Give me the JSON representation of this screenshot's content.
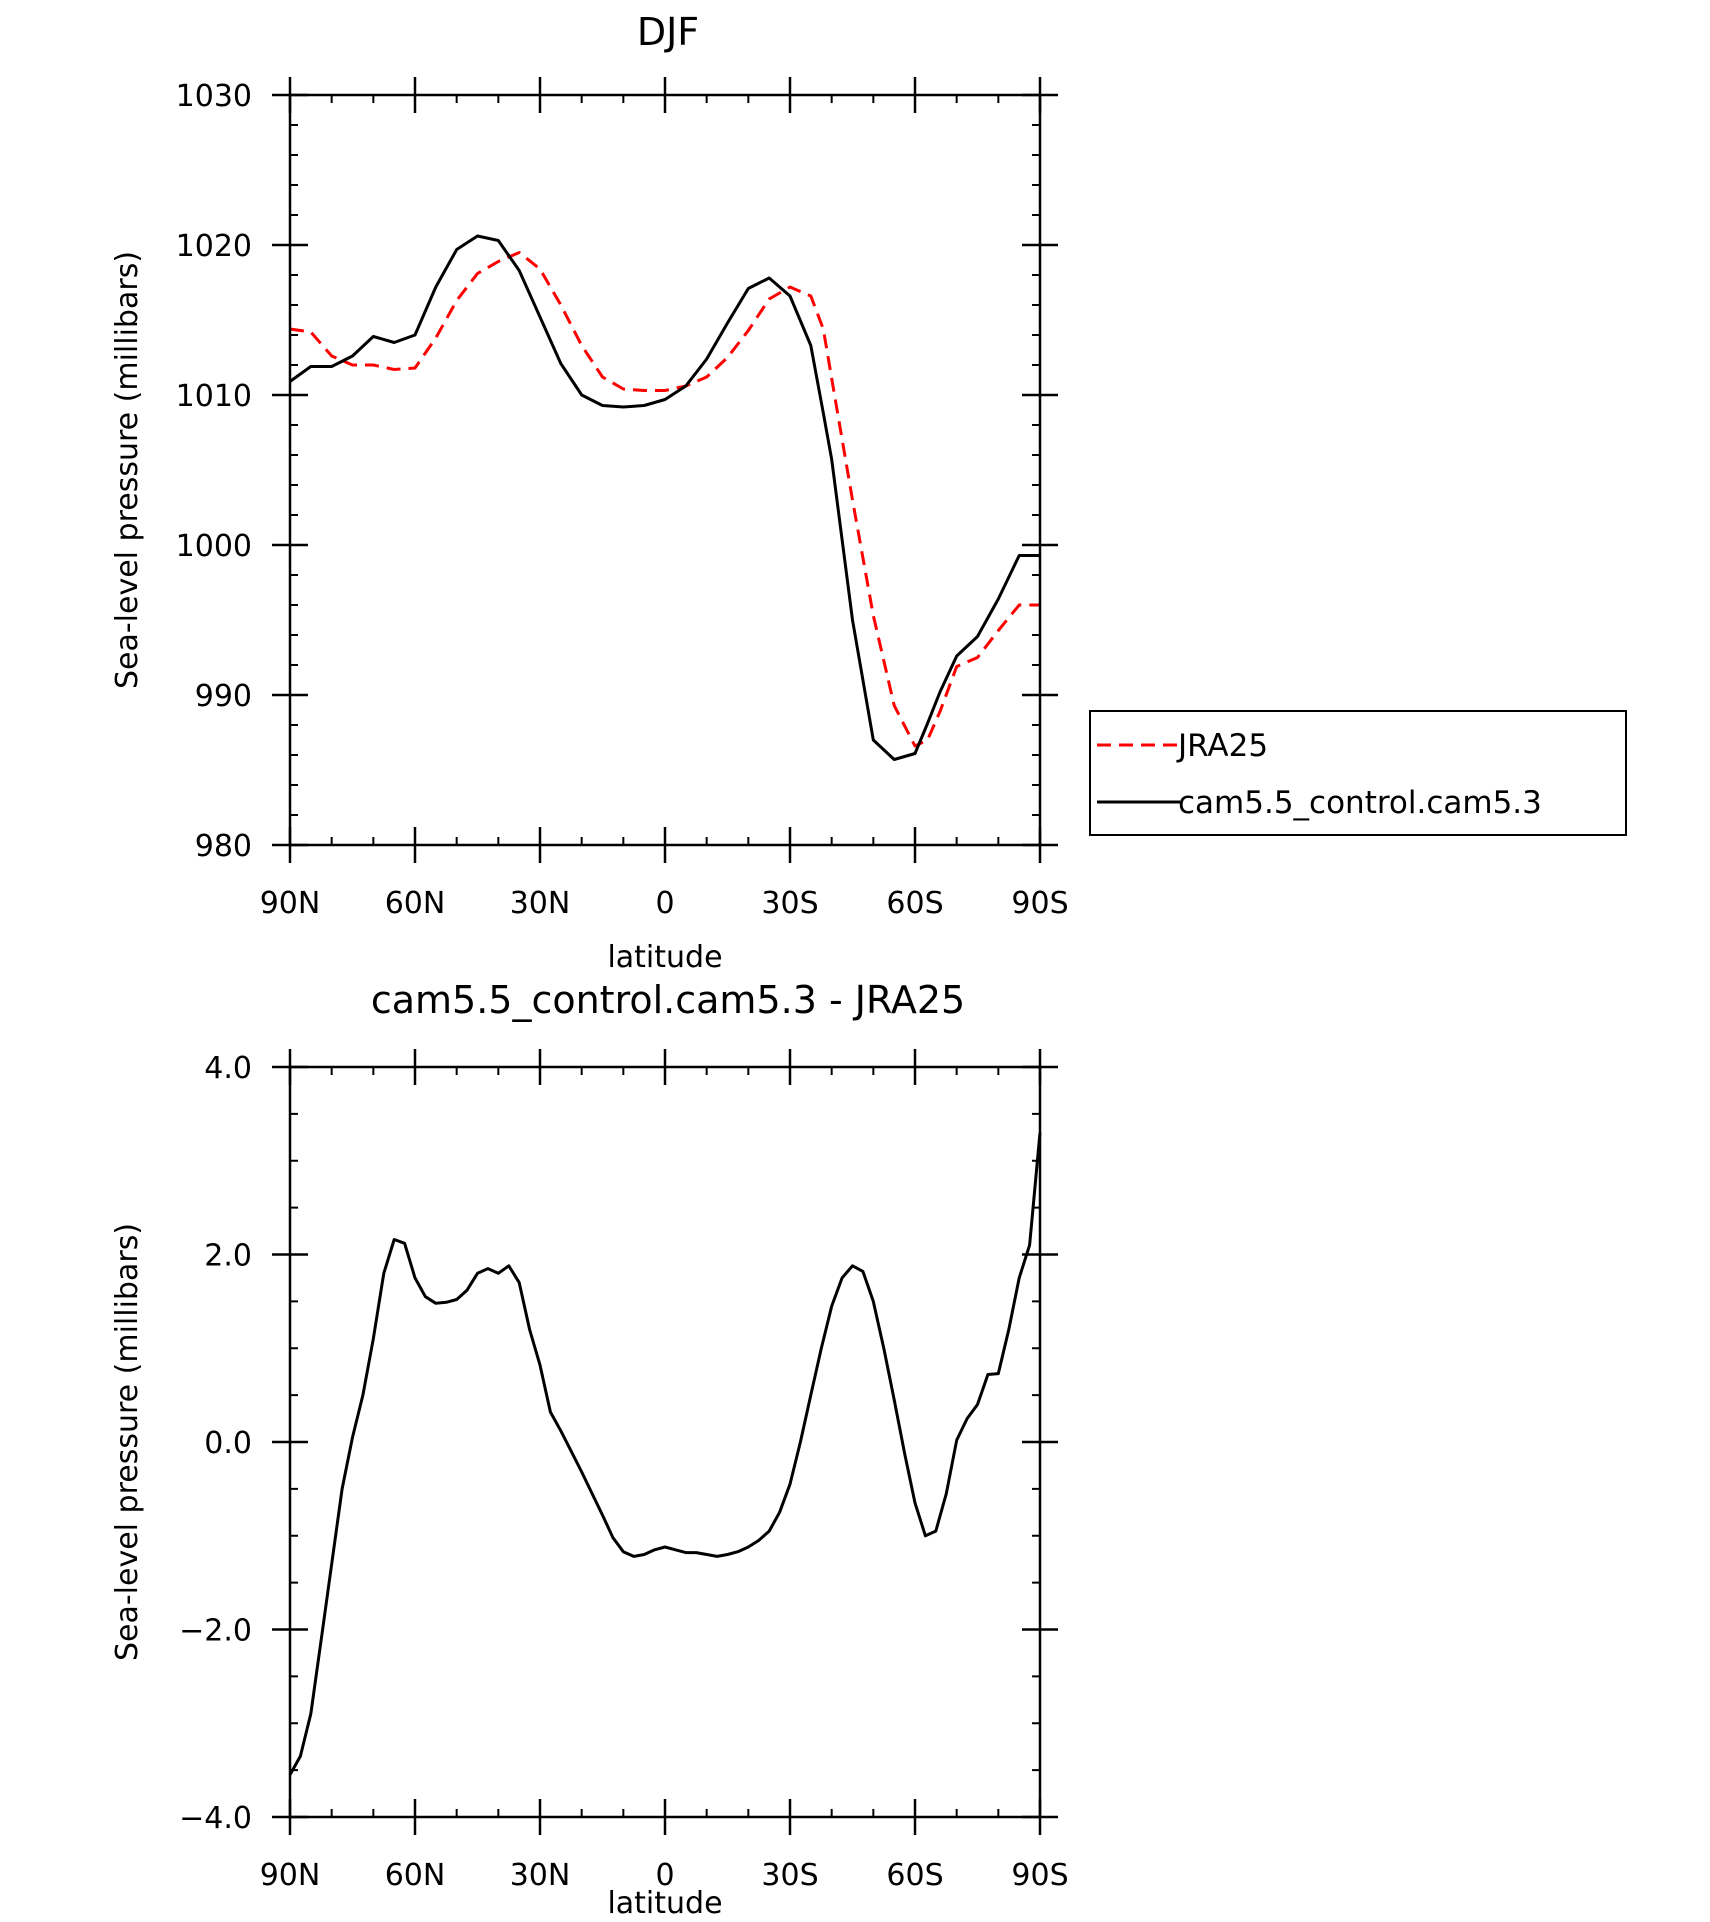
{
  "colors": {
    "jra25": "#ff0000",
    "model": "#000000",
    "axes": "#000000"
  },
  "chart_data": [
    {
      "type": "line",
      "title": "DJF",
      "xlabel": "latitude",
      "ylabel": "Sea-level pressure (millibars)",
      "xlim": [
        -90,
        90
      ],
      "ylim": [
        980,
        1030
      ],
      "x_ticks": [
        {
          "value": -90,
          "label": "90N"
        },
        {
          "value": -60,
          "label": "60N"
        },
        {
          "value": -30,
          "label": "30N"
        },
        {
          "value": 0,
          "label": "0"
        },
        {
          "value": 30,
          "label": "30S"
        },
        {
          "value": 60,
          "label": "60S"
        },
        {
          "value": 90,
          "label": "90S"
        }
      ],
      "y_ticks": [
        {
          "value": 980,
          "label": "980"
        },
        {
          "value": 990,
          "label": "990"
        },
        {
          "value": 1000,
          "label": "1000"
        },
        {
          "value": 1010,
          "label": "1010"
        },
        {
          "value": 1020,
          "label": "1020"
        },
        {
          "value": 1030,
          "label": "1030"
        }
      ],
      "legend_position": "right",
      "series": [
        {
          "name": "JRA25",
          "style": "dashed",
          "color": "#ff0000",
          "x": [
            -90,
            -85,
            -80,
            -75,
            -70,
            -65,
            -60,
            -55,
            -50,
            -45,
            -40,
            -35,
            -30,
            -25,
            -20,
            -15,
            -10,
            -5,
            0,
            5,
            10,
            15,
            20,
            25,
            30,
            35,
            38,
            40,
            45,
            50,
            55,
            60,
            63,
            66,
            70,
            75,
            80,
            85,
            90
          ],
          "y": [
            1014.4,
            1014.2,
            1012.6,
            1012.0,
            1012.0,
            1011.7,
            1011.8,
            1013.8,
            1016.3,
            1018.1,
            1018.9,
            1019.5,
            1018.4,
            1016.0,
            1013.3,
            1011.2,
            1010.4,
            1010.3,
            1010.3,
            1010.6,
            1011.2,
            1012.5,
            1014.3,
            1016.4,
            1017.2,
            1016.6,
            1014.4,
            1011.1,
            1003.0,
            995.3,
            989.3,
            986.6,
            987.0,
            988.9,
            991.9,
            992.5,
            994.3,
            996.0,
            996.0
          ]
        },
        {
          "name": "cam5.5_control.cam5.3",
          "style": "solid",
          "color": "#000000",
          "x": [
            -90,
            -85,
            -80,
            -75,
            -70,
            -65,
            -60,
            -55,
            -50,
            -45,
            -40,
            -35,
            -30,
            -25,
            -20,
            -15,
            -10,
            -5,
            0,
            5,
            10,
            15,
            20,
            25,
            30,
            35,
            38,
            40,
            45,
            50,
            55,
            60,
            63,
            66,
            70,
            75,
            80,
            85,
            90
          ],
          "y": [
            1010.9,
            1011.9,
            1011.9,
            1012.6,
            1013.9,
            1013.5,
            1014.0,
            1017.2,
            1019.7,
            1020.6,
            1020.3,
            1018.3,
            1015.2,
            1012.1,
            1010.0,
            1009.3,
            1009.2,
            1009.3,
            1009.7,
            1010.6,
            1012.4,
            1014.8,
            1017.1,
            1017.8,
            1016.6,
            1013.3,
            1008.8,
            1005.7,
            995.0,
            987.0,
            985.7,
            986.1,
            988.1,
            990.2,
            992.6,
            993.9,
            996.4,
            999.3,
            999.3
          ]
        }
      ]
    },
    {
      "type": "line",
      "title": "cam5.5_control.cam5.3 - JRA25",
      "xlabel": "latitude",
      "ylabel": "Sea-level pressure (millibars)",
      "xlim": [
        -90,
        90
      ],
      "ylim": [
        -4,
        4
      ],
      "x_ticks": [
        {
          "value": -90,
          "label": "90N"
        },
        {
          "value": -60,
          "label": "60N"
        },
        {
          "value": -30,
          "label": "30N"
        },
        {
          "value": 0,
          "label": "0"
        },
        {
          "value": 30,
          "label": "30S"
        },
        {
          "value": 60,
          "label": "60S"
        },
        {
          "value": 90,
          "label": "90S"
        }
      ],
      "y_ticks": [
        {
          "value": -4,
          "label": "−4.0"
        },
        {
          "value": -2,
          "label": "−2.0"
        },
        {
          "value": 0,
          "label": "0.0"
        },
        {
          "value": 2,
          "label": "2.0"
        },
        {
          "value": 4,
          "label": "4.0"
        }
      ],
      "series": [
        {
          "style": "solid",
          "color": "#000000",
          "x": [
            -90,
            -87.5,
            -85,
            -82.5,
            -80,
            -77.5,
            -75,
            -72.5,
            -70,
            -67.5,
            -65,
            -62.5,
            -60,
            -57.5,
            -55,
            -52.5,
            -50,
            -47.5,
            -45,
            -42.5,
            -40,
            -37.5,
            -35,
            -32.5,
            -30,
            -27.5,
            -25,
            -22.5,
            -20,
            -17.5,
            -15,
            -12.5,
            -10,
            -7.5,
            -5,
            -2.5,
            0,
            2.5,
            5,
            7.5,
            10,
            12.5,
            15,
            17.5,
            20,
            22.5,
            25,
            27.5,
            30,
            32.5,
            35,
            37.5,
            40,
            42.5,
            45,
            47.5,
            50,
            52.5,
            55,
            57.5,
            60,
            62.5,
            65,
            67.5,
            70,
            72.5,
            75,
            77.5,
            80,
            82.5,
            85,
            87.5,
            90
          ],
          "y": [
            -3.55,
            -3.35,
            -2.9,
            -2.1,
            -1.3,
            -0.5,
            0.05,
            0.5,
            1.1,
            1.8,
            2.16,
            2.12,
            1.75,
            1.55,
            1.48,
            1.49,
            1.52,
            1.62,
            1.8,
            1.85,
            1.8,
            1.88,
            1.7,
            1.2,
            0.82,
            0.32,
            0.12,
            -0.1,
            -0.32,
            -0.55,
            -0.78,
            -1.02,
            -1.17,
            -1.22,
            -1.2,
            -1.15,
            -1.12,
            -1.15,
            -1.18,
            -1.18,
            -1.2,
            -1.22,
            -1.2,
            -1.17,
            -1.12,
            -1.05,
            -0.95,
            -0.75,
            -0.45,
            0.0,
            0.5,
            1.0,
            1.45,
            1.75,
            1.88,
            1.82,
            1.5,
            1.0,
            0.45,
            -0.12,
            -0.65,
            -1.0,
            -0.95,
            -0.55,
            0.02,
            0.25,
            0.4,
            0.72,
            0.73,
            1.2,
            1.75,
            2.1,
            3.3
          ]
        }
      ]
    }
  ]
}
